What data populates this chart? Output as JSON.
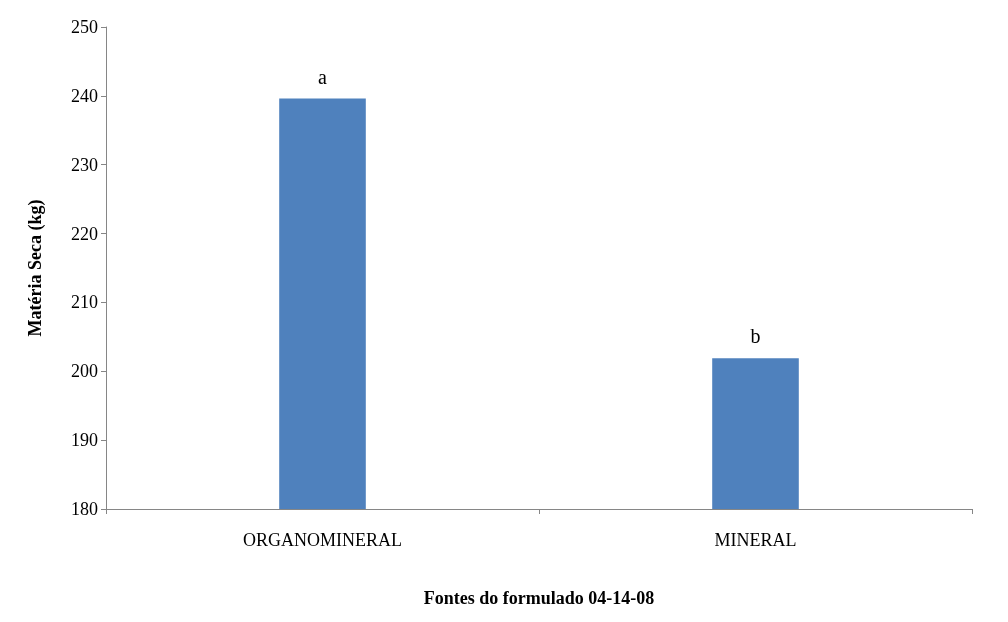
{
  "chart_data": {
    "type": "bar",
    "xlabel": "Fontes do formulado 04-14-08",
    "ylabel": "Matéria Seca (kg)",
    "categories": [
      "ORGANOMINERAL",
      "MINERAL"
    ],
    "values": [
      239.6,
      201.9
    ],
    "color": "#4f81bd",
    "ylim": [
      180,
      250
    ],
    "yticks": [
      180,
      190,
      200,
      210,
      220,
      230,
      240,
      250
    ],
    "grid": false,
    "annotations": [
      {
        "text": "a",
        "x": "ORGANOMINERAL",
        "y": 239.6
      },
      {
        "text": "b",
        "x": "MINERAL",
        "y": 201.9
      }
    ]
  }
}
